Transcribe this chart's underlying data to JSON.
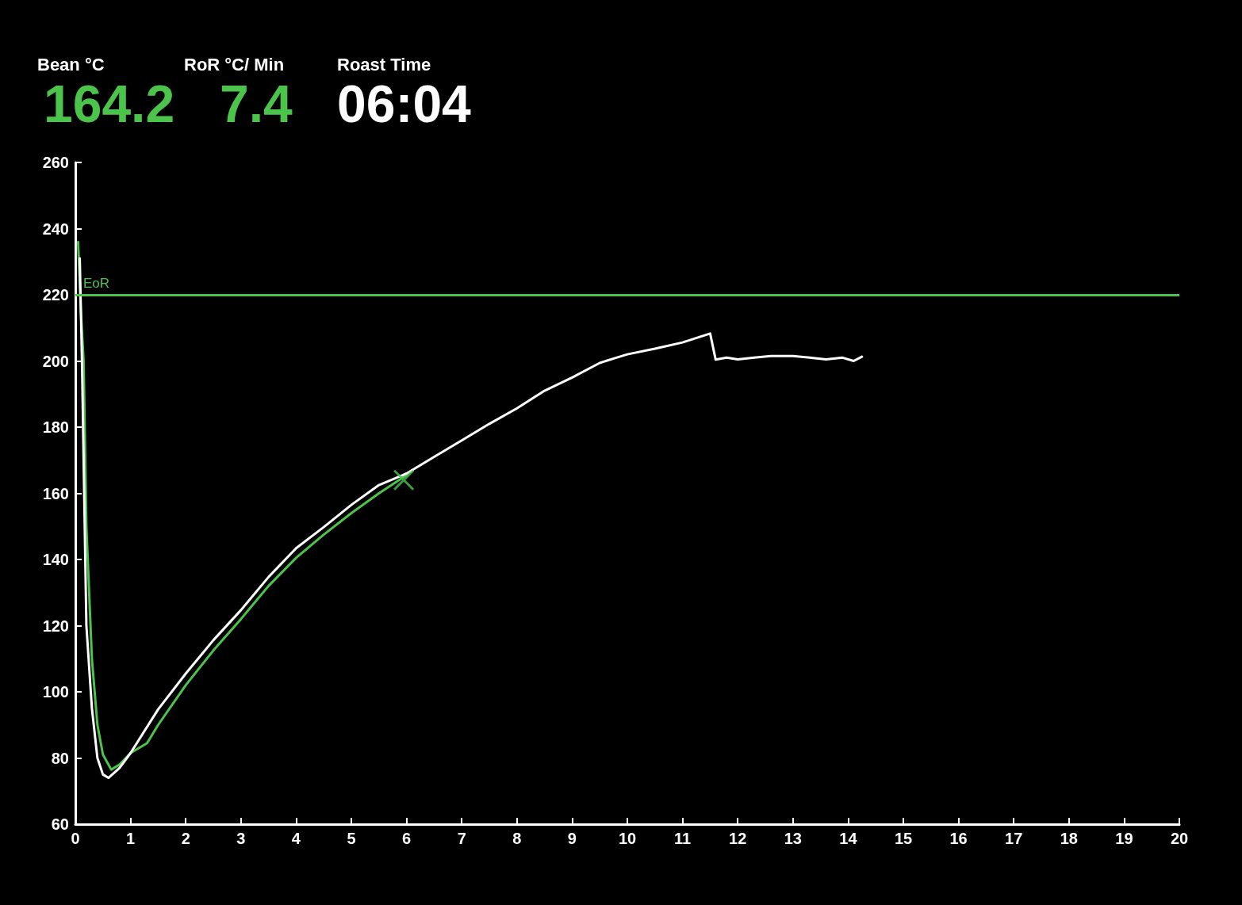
{
  "chart_data": {
    "type": "line",
    "xlim": [
      0,
      20
    ],
    "ylim": [
      60,
      260
    ],
    "xticks": [
      0,
      1,
      2,
      3,
      4,
      5,
      6,
      7,
      8,
      9,
      10,
      11,
      12,
      13,
      14,
      15,
      16,
      17,
      18,
      19,
      20
    ],
    "yticks": [
      60,
      80,
      100,
      120,
      140,
      160,
      180,
      200,
      220,
      240,
      260
    ],
    "grid": false,
    "marker": "none",
    "line_style": "solid",
    "annotations": [
      "Bean °C",
      "164.2",
      "RoR °C/ Min",
      "7.4",
      "Roast Time",
      "06:04"
    ],
    "ref_lines": [
      {
        "axis": "y",
        "value": 220,
        "label": "EoR",
        "color": "#4cc44c"
      }
    ],
    "series": [
      {
        "color": "#4cc44c",
        "x": [
          0.05,
          0.1,
          0.15,
          0.2,
          0.3,
          0.4,
          0.5,
          0.65,
          0.8,
          1,
          1.3,
          1.5,
          2,
          2.5,
          3,
          3.5,
          4,
          4.5,
          5,
          5.5,
          6,
          6.1
        ],
        "values": [
          236,
          215,
          200,
          150,
          110,
          90,
          81,
          76.5,
          78,
          81.5,
          84.5,
          90,
          102,
          112.5,
          122,
          132,
          140.5,
          147.5,
          154,
          160,
          165.5,
          167
        ]
      },
      {
        "color": "#ffffff",
        "x": [
          0.08,
          0.12,
          0.15,
          0.2,
          0.3,
          0.4,
          0.5,
          0.6,
          0.8,
          1,
          1.5,
          2,
          2.5,
          3,
          3.5,
          4,
          4.5,
          5,
          5.5,
          6,
          6.5,
          7,
          7.5,
          8,
          8.5,
          9,
          9.5,
          9.8,
          10,
          10.5,
          11,
          11.5,
          11.6,
          11.8,
          12,
          12.3,
          12.6,
          13,
          13.3,
          13.6,
          13.9,
          14.1,
          14.25
        ],
        "values": [
          231,
          200,
          170,
          120,
          95,
          80,
          75,
          74,
          77,
          81.5,
          94.7,
          105.5,
          115.6,
          124.7,
          134.7,
          143.4,
          149.8,
          156.5,
          162.5,
          166,
          171,
          176,
          181,
          185.7,
          191,
          195,
          199.4,
          201,
          202,
          203.7,
          205.6,
          208.3,
          200.4,
          201,
          200.5,
          201,
          201.5,
          201.5,
          201,
          200.5,
          201,
          200,
          201.3
        ]
      },
      {
        "type": "scatter",
        "color": "#4cc44c",
        "marker": "cross",
        "x": [
          5.95
        ],
        "values": [
          164
        ]
      }
    ]
  }
}
